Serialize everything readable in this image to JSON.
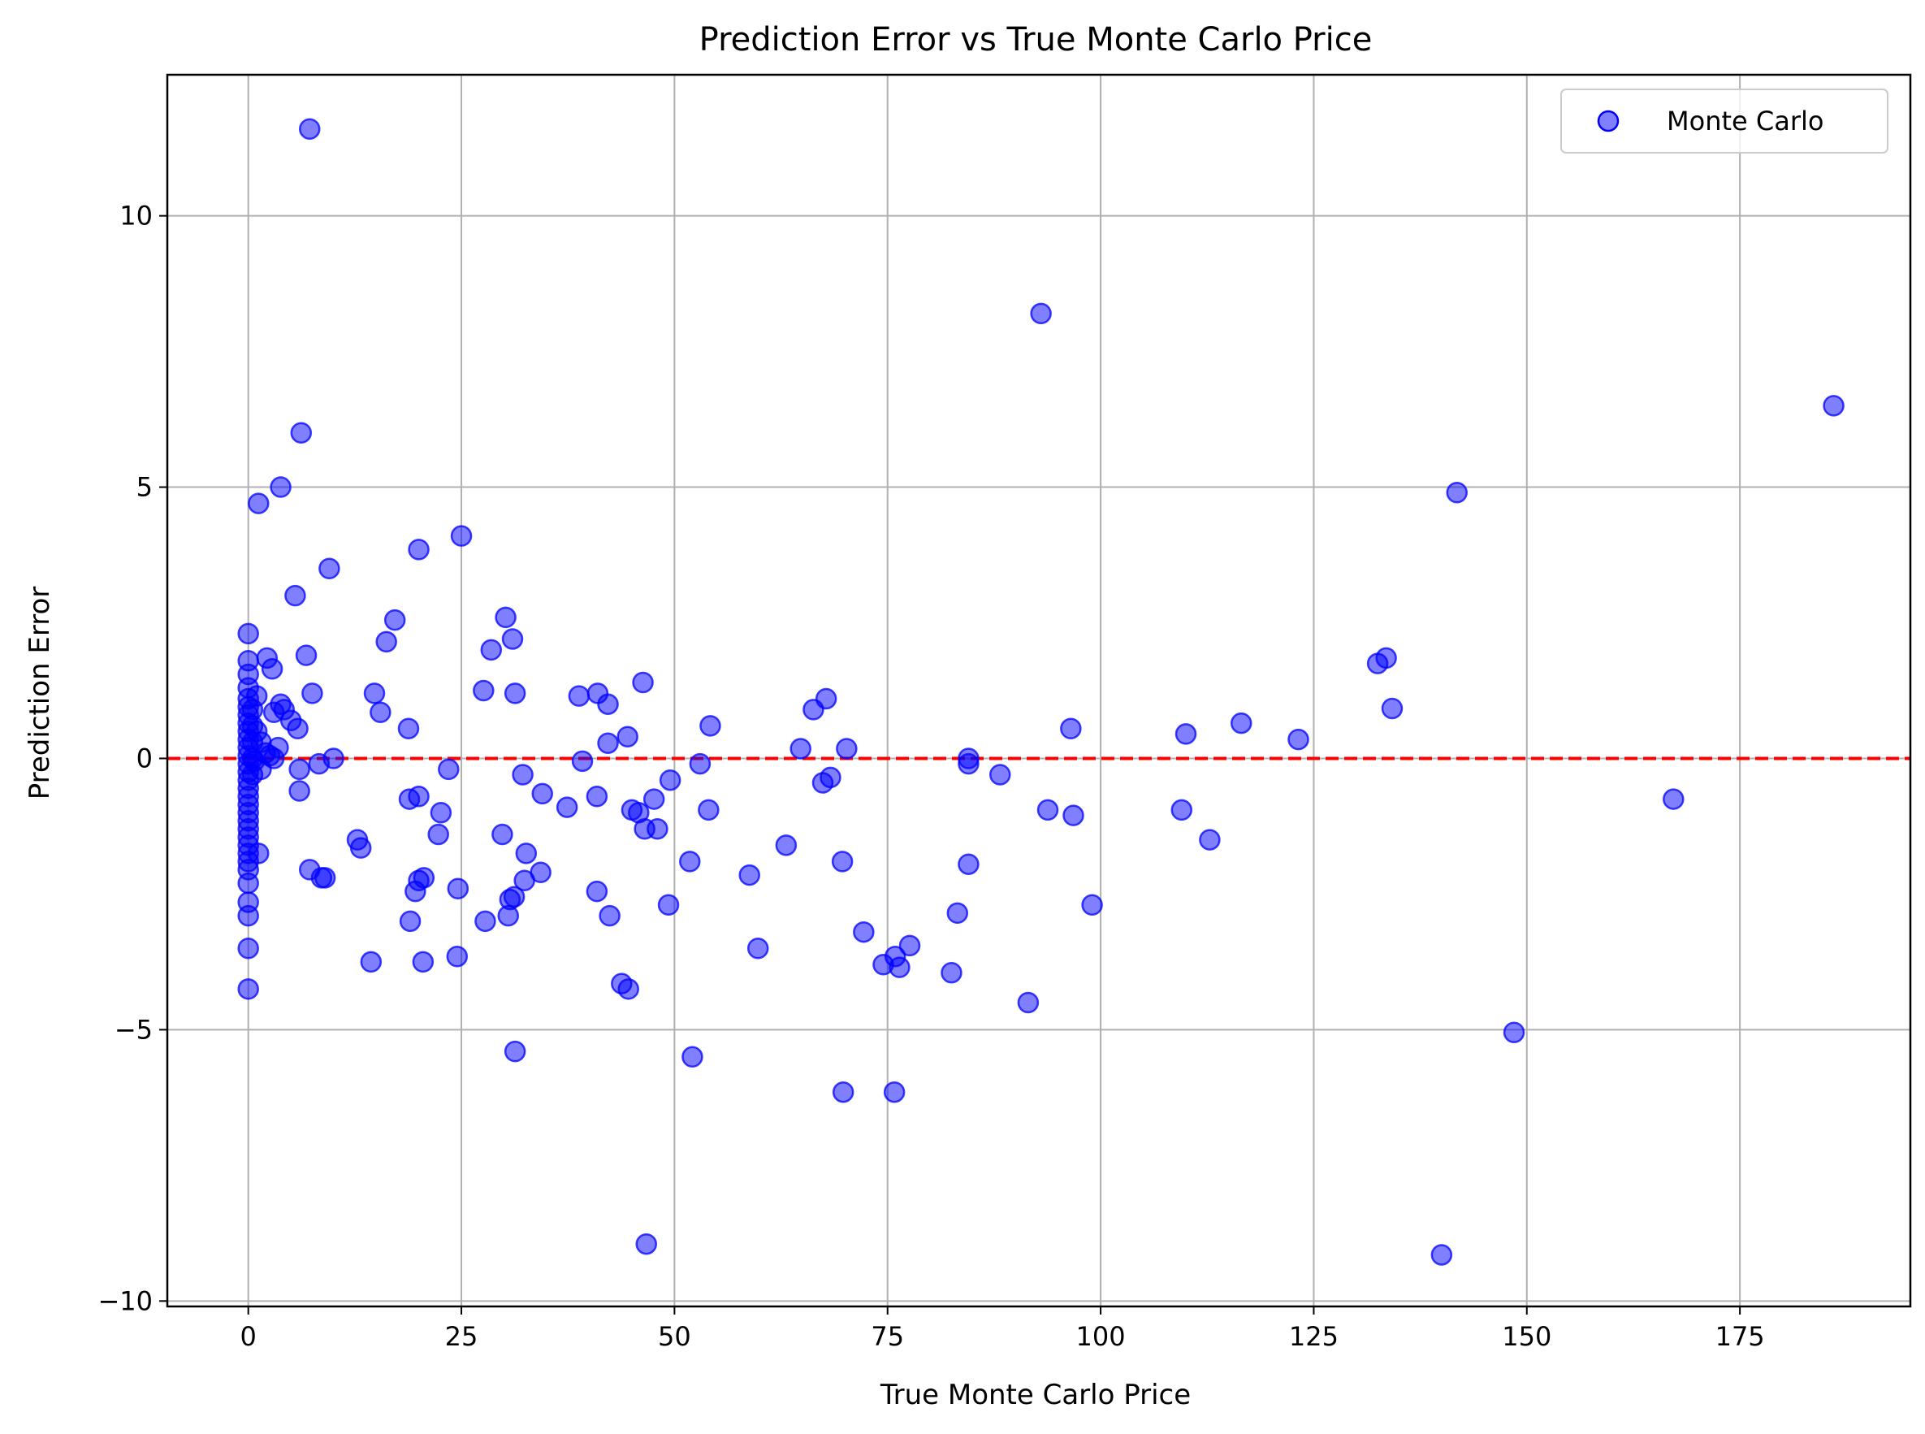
{
  "chart_data": {
    "type": "scatter",
    "title": "Prediction Error vs True Monte Carlo Price",
    "xlabel": "True Monte Carlo Price",
    "ylabel": "Prediction Error",
    "xlim": [
      -9.5,
      195
    ],
    "ylim": [
      -10.1,
      12.6
    ],
    "xticks": [
      0,
      25,
      50,
      75,
      100,
      125,
      150,
      175
    ],
    "yticks": [
      -10,
      -5,
      0,
      5,
      10
    ],
    "xtick_labels": [
      "0",
      "25",
      "50",
      "75",
      "100",
      "125",
      "150",
      "175"
    ],
    "ytick_labels": [
      "−10",
      "−5",
      "0",
      "5",
      "10"
    ],
    "grid": true,
    "legend_position": "top-right",
    "reference_line": {
      "y": 0,
      "color": "#ff0000",
      "style": "dashed"
    },
    "series": [
      {
        "name": "Monte Carlo",
        "color": "#0000ff",
        "points": [
          [
            7.2,
            11.6
          ],
          [
            93,
            8.2
          ],
          [
            186,
            6.5
          ],
          [
            6.2,
            6.0
          ],
          [
            3.8,
            5.0
          ],
          [
            1.2,
            4.7
          ],
          [
            141.8,
            4.9
          ],
          [
            25,
            4.1
          ],
          [
            20,
            3.85
          ],
          [
            9.5,
            3.5
          ],
          [
            5.5,
            3.0
          ],
          [
            17.2,
            2.55
          ],
          [
            30.2,
            2.6
          ],
          [
            31,
            2.2
          ],
          [
            16.2,
            2.15
          ],
          [
            28.5,
            2.0
          ],
          [
            6.8,
            1.9
          ],
          [
            2.2,
            1.85
          ],
          [
            2.8,
            1.65
          ],
          [
            0,
            2.3
          ],
          [
            0,
            1.8
          ],
          [
            0,
            1.55
          ],
          [
            133.5,
            1.85
          ],
          [
            132.5,
            1.75
          ],
          [
            46.3,
            1.4
          ],
          [
            27.6,
            1.25
          ],
          [
            7.5,
            1.2
          ],
          [
            31.3,
            1.2
          ],
          [
            14.8,
            1.2
          ],
          [
            38.8,
            1.15
          ],
          [
            41,
            1.2
          ],
          [
            42.2,
            1.0
          ],
          [
            67.8,
            1.1
          ],
          [
            66.3,
            0.9
          ],
          [
            3.8,
            1.0
          ],
          [
            4.2,
            0.9
          ],
          [
            3,
            0.85
          ],
          [
            5,
            0.7
          ],
          [
            15.5,
            0.85
          ],
          [
            1,
            1.15
          ],
          [
            0,
            1.3
          ],
          [
            0,
            1.1
          ],
          [
            0,
            0.95
          ],
          [
            0,
            0.8
          ],
          [
            0,
            0.65
          ],
          [
            0,
            0.5
          ],
          [
            0,
            0.35
          ],
          [
            0,
            0.2
          ],
          [
            0,
            0.05
          ],
          [
            0,
            -0.1
          ],
          [
            0,
            -0.25
          ],
          [
            0,
            -0.4
          ],
          [
            0,
            -0.55
          ],
          [
            0.5,
            0.9
          ],
          [
            0.5,
            0.6
          ],
          [
            0.5,
            0.3
          ],
          [
            0.5,
            0.0
          ],
          [
            0.5,
            -0.3
          ],
          [
            1,
            0.5
          ],
          [
            1.5,
            0.3
          ],
          [
            2,
            0.1
          ],
          [
            3.5,
            0.2
          ],
          [
            1.5,
            -0.2
          ],
          [
            2.5,
            0.05
          ],
          [
            3,
            0
          ],
          [
            0.7,
            -0.05
          ],
          [
            18.8,
            0.55
          ],
          [
            44.5,
            0.4
          ],
          [
            54.2,
            0.6
          ],
          [
            96.5,
            0.55
          ],
          [
            116.5,
            0.65
          ],
          [
            110,
            0.45
          ],
          [
            123.2,
            0.35
          ],
          [
            134.2,
            0.92
          ],
          [
            42.2,
            0.28
          ],
          [
            64.8,
            0.18
          ],
          [
            70.2,
            0.18
          ],
          [
            5.8,
            0.55
          ],
          [
            10,
            0
          ],
          [
            8.3,
            -0.1
          ],
          [
            6,
            -0.2
          ],
          [
            6,
            -0.6
          ],
          [
            23.5,
            -0.2
          ],
          [
            32.2,
            -0.3
          ],
          [
            39.2,
            -0.05
          ],
          [
            53,
            -0.1
          ],
          [
            84.5,
            0
          ],
          [
            84.5,
            -0.1
          ],
          [
            88.2,
            -0.3
          ],
          [
            68.3,
            -0.35
          ],
          [
            67.4,
            -0.45
          ],
          [
            49.5,
            -0.4
          ],
          [
            34.5,
            -0.65
          ],
          [
            37.4,
            -0.9
          ],
          [
            40.9,
            -0.7
          ],
          [
            47.6,
            -0.75
          ],
          [
            45,
            -0.95
          ],
          [
            45.8,
            -1.0
          ],
          [
            54,
            -0.95
          ],
          [
            46.5,
            -1.3
          ],
          [
            48,
            -1.3
          ],
          [
            93.8,
            -0.95
          ],
          [
            96.8,
            -1.05
          ],
          [
            109.5,
            -0.95
          ],
          [
            167.2,
            -0.75
          ],
          [
            18.9,
            -0.75
          ],
          [
            20,
            -0.7
          ],
          [
            22.6,
            -1.0
          ],
          [
            22.3,
            -1.4
          ],
          [
            29.8,
            -1.4
          ],
          [
            12.8,
            -1.5
          ],
          [
            13.2,
            -1.65
          ],
          [
            1.2,
            -1.75
          ],
          [
            32.6,
            -1.75
          ],
          [
            51.8,
            -1.9
          ],
          [
            63.1,
            -1.6
          ],
          [
            69.7,
            -1.9
          ],
          [
            84.5,
            -1.95
          ],
          [
            112.8,
            -1.5
          ],
          [
            34.3,
            -2.1
          ],
          [
            32.4,
            -2.25
          ],
          [
            58.8,
            -2.15
          ],
          [
            7.2,
            -2.05
          ],
          [
            8.6,
            -2.2
          ],
          [
            9,
            -2.2
          ],
          [
            20.6,
            -2.2
          ],
          [
            20,
            -2.25
          ],
          [
            19.6,
            -2.45
          ],
          [
            24.6,
            -2.4
          ],
          [
            40.9,
            -2.45
          ],
          [
            31.2,
            -2.55
          ],
          [
            30.7,
            -2.6
          ],
          [
            49.3,
            -2.7
          ],
          [
            99,
            -2.7
          ],
          [
            30.5,
            -2.9
          ],
          [
            27.8,
            -3.0
          ],
          [
            19,
            -3.0
          ],
          [
            42.4,
            -2.9
          ],
          [
            83.2,
            -2.85
          ],
          [
            72.2,
            -3.2
          ],
          [
            77.6,
            -3.45
          ],
          [
            75.9,
            -3.65
          ],
          [
            59.8,
            -3.5
          ],
          [
            24.5,
            -3.65
          ],
          [
            20.5,
            -3.75
          ],
          [
            14.4,
            -3.75
          ],
          [
            74.5,
            -3.8
          ],
          [
            76.4,
            -3.85
          ],
          [
            82.5,
            -3.95
          ],
          [
            43.8,
            -4.15
          ],
          [
            44.6,
            -4.25
          ],
          [
            91.5,
            -4.5
          ],
          [
            148.5,
            -5.05
          ],
          [
            31.3,
            -5.4
          ],
          [
            52.1,
            -5.5
          ],
          [
            69.8,
            -6.15
          ],
          [
            75.8,
            -6.15
          ],
          [
            46.7,
            -8.95
          ],
          [
            140,
            -9.15
          ],
          [
            0,
            -0.7
          ],
          [
            0,
            -0.85
          ],
          [
            0,
            -1.0
          ],
          [
            0,
            -1.15
          ],
          [
            0,
            -1.3
          ],
          [
            0,
            -1.45
          ],
          [
            0,
            -1.6
          ],
          [
            0,
            -1.75
          ],
          [
            0,
            -1.9
          ],
          [
            0,
            -2.05
          ],
          [
            0,
            -2.3
          ],
          [
            0,
            -2.65
          ],
          [
            0,
            -2.9
          ],
          [
            0,
            -3.5
          ],
          [
            0,
            -4.25
          ]
        ]
      }
    ]
  }
}
